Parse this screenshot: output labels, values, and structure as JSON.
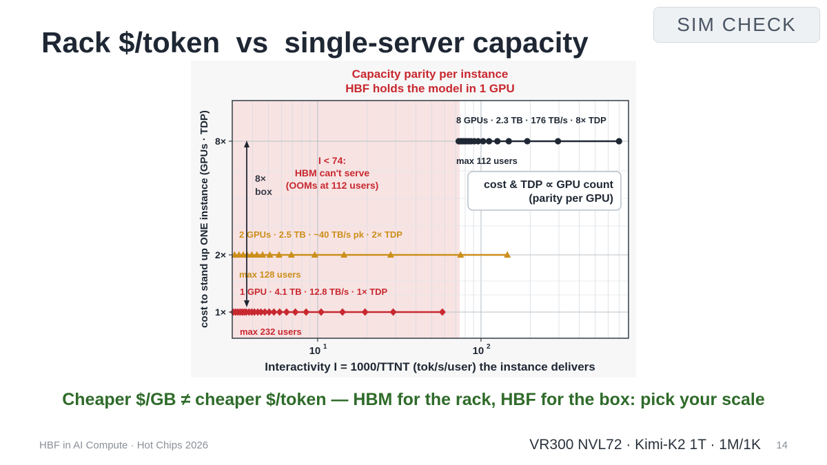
{
  "badge": "SIM CHECK",
  "title": "Rack $/token  vs  single-server capacity",
  "takeaway": "Cheaper $/GB ≠ cheaper $/token — HBM for the rack, HBF for the box: pick your scale",
  "footer": {
    "left": "HBF in AI Compute · Hot Chips 2026",
    "right": "VR300 NVL72 · Kimi-K2 1T · 1M/1K",
    "page": "14"
  },
  "colors": {
    "gpu8": "#1e2733",
    "gpu2": "#cc8f1a",
    "gpu1": "#c8282f",
    "shade": "#f8e3e3",
    "title_red": "#c8282f",
    "takeaway_green": "#2f6b2a"
  },
  "chart_data": {
    "type": "scatter",
    "title_lines": [
      "Capacity parity per instance",
      "HBF holds the model in 1 GPU"
    ],
    "xlabel": "Interactivity  I = 1000/TTNT  (tok/s/user) the instance delivers",
    "ylabel": "cost to stand up ONE instance  (GPUs · TDP)",
    "xscale": "log",
    "ylim_labels": [
      "1×",
      "2×",
      "8×"
    ],
    "x_ticks": [
      {
        "base": "10",
        "exp": "1"
      },
      {
        "base": "10",
        "exp": "2"
      }
    ],
    "shaded_region_label": "I < 74",
    "shaded_threshold": 74,
    "annotations": {
      "shade": [
        "I < 74:",
        "HBM can't serve",
        "(OOMs at 112 users)"
      ],
      "box": [
        "8×",
        "box"
      ],
      "parity": [
        "cost & TDP   ∝   GPU count",
        "(parity per GPU)"
      ]
    },
    "series": [
      {
        "name": "8 GPUs · 2.3 TB · 176 TB/s · 8× TDP",
        "note": "max 112 users",
        "marker": "circle",
        "y": 8,
        "x": [
          73,
          75,
          77,
          79,
          81,
          84,
          87,
          91,
          96,
          103,
          112,
          126,
          148,
          192,
          296,
          700
        ]
      },
      {
        "name": "2 GPUs · 2.5 TB · ~40 TB/s pk · 2× TDP",
        "note": "max 128 users",
        "marker": "triangle",
        "y": 2,
        "x": [
          3.1,
          3.3,
          3.5,
          3.7,
          3.95,
          4.25,
          4.6,
          5.1,
          5.8,
          6.9,
          9.6,
          14.5,
          28,
          75,
          145
        ]
      },
      {
        "name": "1 GPU · 4.1 TB · 12.8 TB/s · 1× TDP",
        "note": "max 232 users",
        "marker": "diamond",
        "y": 1,
        "x": [
          3.05,
          3.15,
          3.25,
          3.35,
          3.45,
          3.55,
          3.65,
          3.8,
          3.95,
          4.1,
          4.3,
          4.5,
          4.75,
          5.05,
          5.4,
          5.85,
          6.45,
          7.3,
          8.5,
          10.5,
          14.2,
          19.5,
          29,
          58
        ]
      }
    ]
  }
}
